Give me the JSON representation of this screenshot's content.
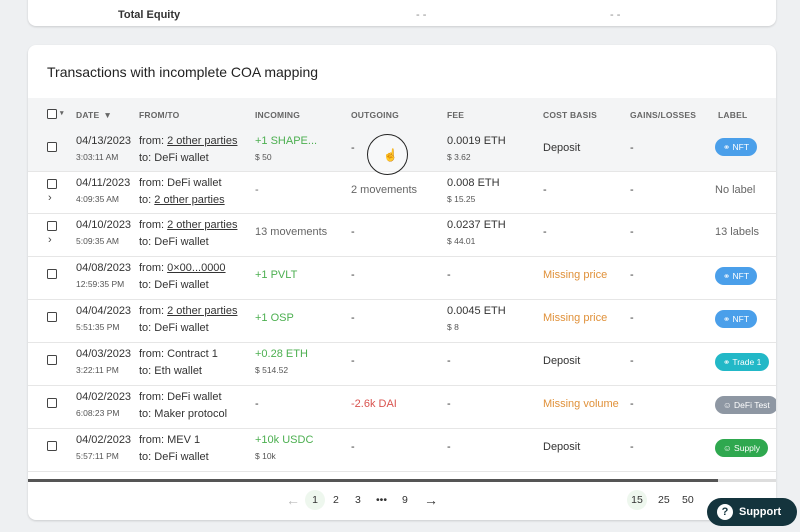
{
  "top_card": {
    "label": "Total Equity",
    "val1": "- -",
    "val2": "- -"
  },
  "title": "Transactions with incomplete COA mapping",
  "headers": {
    "date": "DATE",
    "from_to": "FROM/TO",
    "incoming": "INCOMING",
    "outgoing": "OUTGOING",
    "fee": "FEE",
    "cost_basis": "COST BASIS",
    "gains_losses": "GAINS/LOSSES",
    "label": "LABEL"
  },
  "rows": [
    {
      "date": "04/13/2023",
      "time": "3:03:11 AM",
      "from_prefix": "from: ",
      "from": "2 other parties",
      "to_prefix": "to: ",
      "to": "DeFi wallet",
      "incoming": "+1 SHAPE...",
      "incoming_sub": "$ 50",
      "outgoing": "-",
      "fee": "0.0019 ETH",
      "fee_sub": "$ 3.62",
      "cost_basis": "Deposit",
      "gains": "-",
      "label": "NFT"
    },
    {
      "date": "04/11/2023",
      "time": "4:09:35 AM",
      "from_prefix": "from: ",
      "from": "DeFi wallet",
      "to_prefix": "to: ",
      "to": "2 other parties",
      "incoming": "-",
      "outgoing": "2 movements",
      "fee": "0.008 ETH",
      "fee_sub": "$ 15.25",
      "cost_basis": "-",
      "gains": "-",
      "label": "No label"
    },
    {
      "date": "04/10/2023",
      "time": "5:09:35 AM",
      "from_prefix": "from: ",
      "from": "2 other parties",
      "to_prefix": "to: ",
      "to": "DeFi wallet",
      "incoming": "13 movements",
      "outgoing": "-",
      "fee": "0.0237 ETH",
      "fee_sub": "$ 44.01",
      "cost_basis": "-",
      "gains": "-",
      "label": "13 labels"
    },
    {
      "date": "04/08/2023",
      "time": "12:59:35 PM",
      "from_prefix": "from: ",
      "from": "0×00...0000",
      "to_prefix": "to: ",
      "to": "DeFi wallet",
      "incoming": "+1 PVLT",
      "outgoing": "-",
      "fee": "-",
      "cost_basis": "Missing price",
      "gains": "-",
      "label": "NFT"
    },
    {
      "date": "04/04/2023",
      "time": "5:51:35 PM",
      "from_prefix": "from: ",
      "from": "2 other parties",
      "to_prefix": "to: ",
      "to": "DeFi wallet",
      "incoming": "+1 OSP",
      "outgoing": "-",
      "fee": "0.0045 ETH",
      "fee_sub": "$ 8",
      "cost_basis": "Missing price",
      "gains": "-",
      "label": "NFT"
    },
    {
      "date": "04/03/2023",
      "time": "3:22:11 PM",
      "from_prefix": "from: ",
      "from": "Contract 1",
      "to_prefix": "to: ",
      "to": "Eth wallet",
      "incoming": "+0.28 ETH",
      "incoming_sub": "$ 514.52",
      "outgoing": "-",
      "fee": "-",
      "cost_basis": "Deposit",
      "gains": "-",
      "label": "Trade 1"
    },
    {
      "date": "04/02/2023",
      "time": "6:08:23 PM",
      "from_prefix": "from: ",
      "from": "DeFi wallet",
      "to_prefix": "to: ",
      "to": "Maker protocol",
      "incoming": "-",
      "outgoing": "-2.6k DAI",
      "fee": "-",
      "cost_basis": "Missing volume",
      "gains": "-",
      "label": "DeFi Test"
    },
    {
      "date": "04/02/2023",
      "time": "5:57:11 PM",
      "from_prefix": "from: ",
      "from": "MEV 1",
      "to_prefix": "to: ",
      "to": "DeFi wallet",
      "incoming": "+10k USDC",
      "incoming_sub": "$ 10k",
      "outgoing": "-",
      "fee": "-",
      "cost_basis": "Deposit",
      "gains": "-",
      "label": "Supply"
    }
  ],
  "pagination": {
    "pages": [
      "1",
      "2",
      "3",
      "•••",
      "9"
    ],
    "sizes": [
      "15",
      "25",
      "50"
    ]
  },
  "support": {
    "label": "Support"
  },
  "colors": {
    "nft": "#4a9fea",
    "trade": "#22b8c7",
    "defi": "#8e97a3",
    "supply": "#2fa84f",
    "support_bg": "#14343d"
  }
}
